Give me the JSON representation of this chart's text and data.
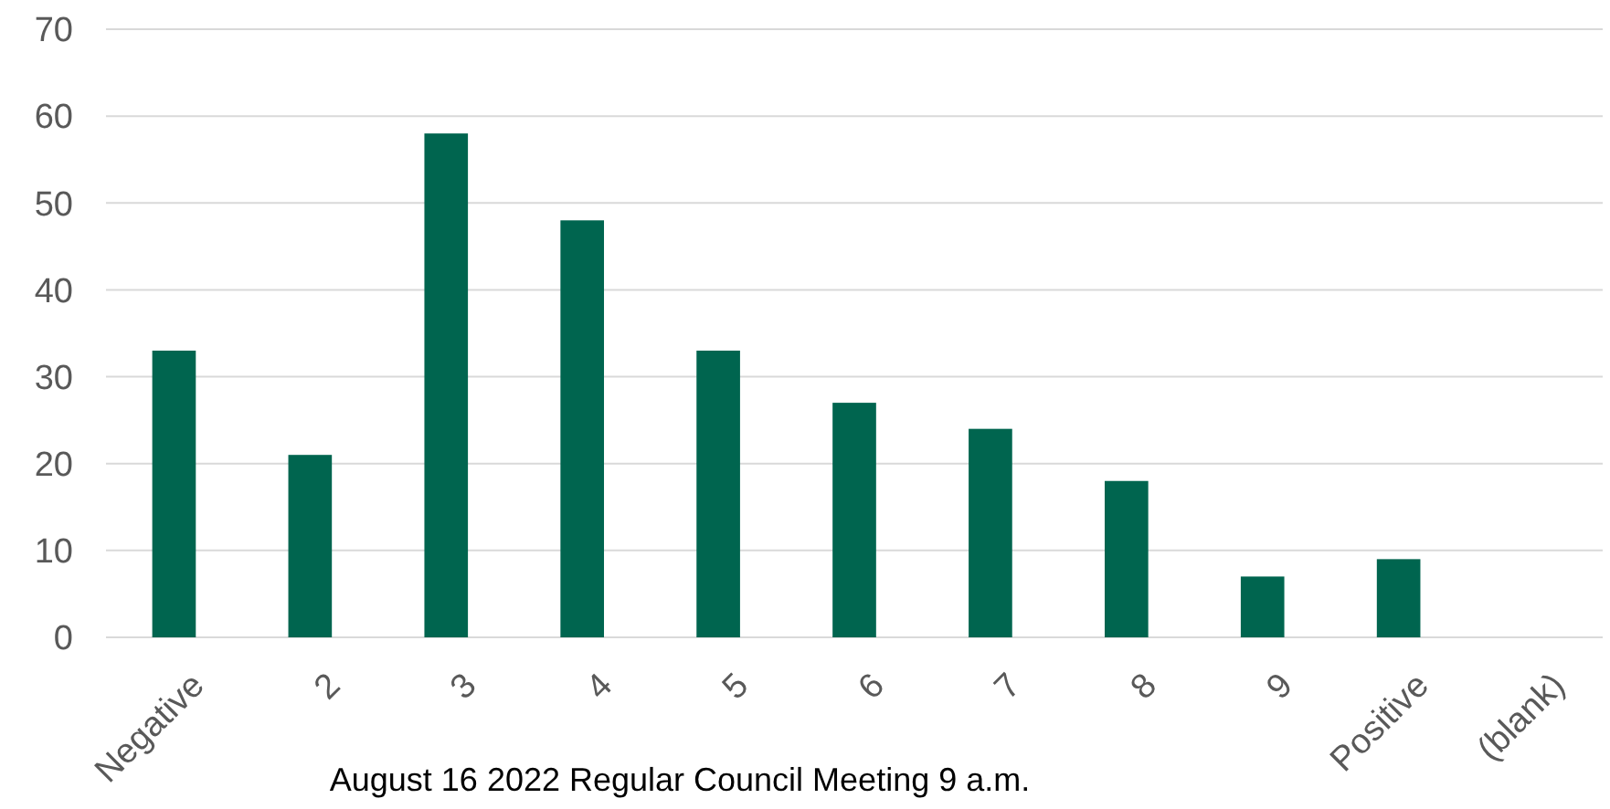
{
  "chart_data": {
    "type": "bar",
    "xlabel": "August 16 2022 Regular Council Meeting 9 a.m.",
    "categories": [
      "Negative",
      "2",
      "3",
      "4",
      "5",
      "6",
      "7",
      "8",
      "9",
      "Positive",
      "(blank)"
    ],
    "values": [
      33,
      21,
      58,
      48,
      33,
      27,
      24,
      18,
      7,
      9,
      null
    ],
    "color": "#00654f",
    "ylim": [
      0,
      70
    ],
    "yticks": [
      0,
      10,
      20,
      30,
      40,
      50,
      60,
      70
    ],
    "grid": "y"
  }
}
